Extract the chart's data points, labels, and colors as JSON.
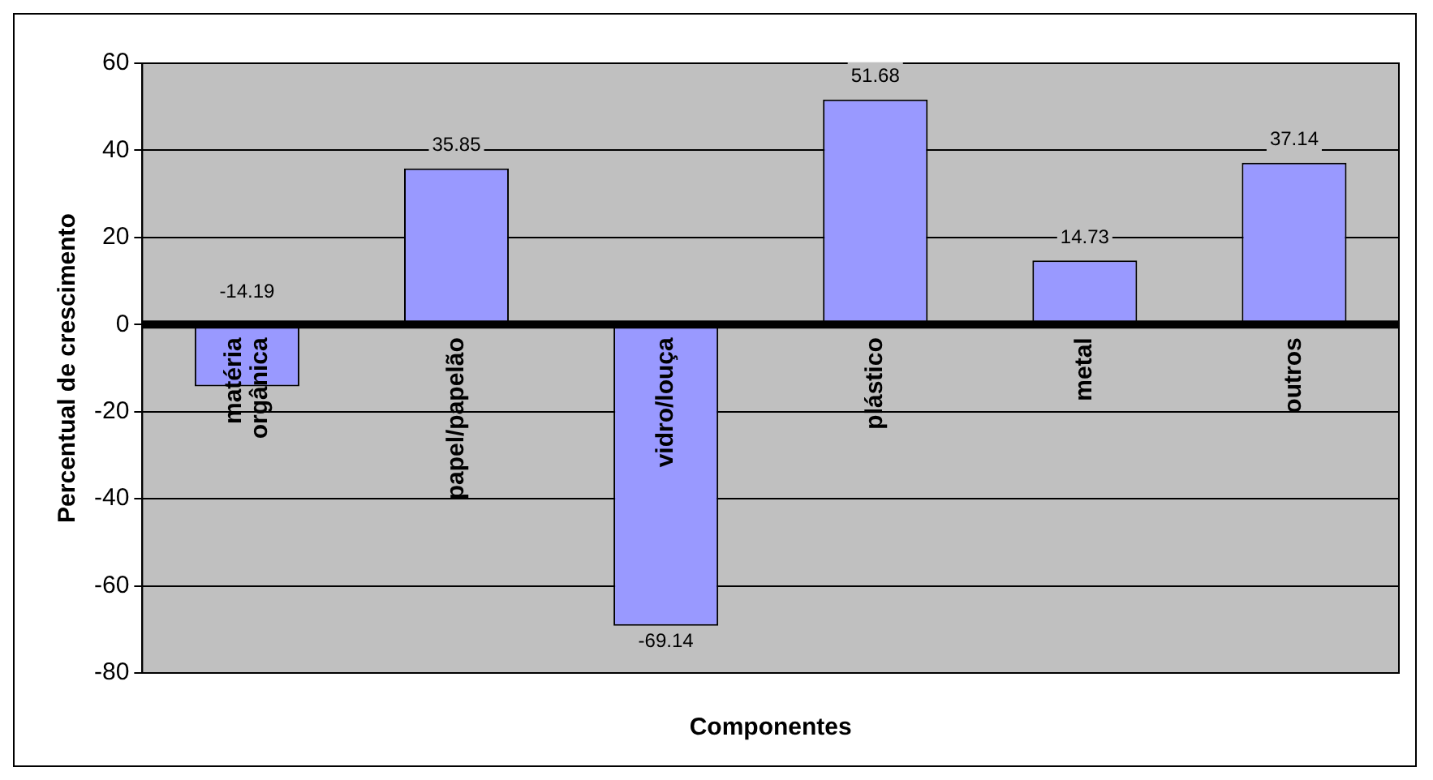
{
  "chart_data": {
    "type": "bar",
    "xlabel": "Componentes",
    "ylabel": "Percentual de crescimento",
    "categories": [
      "matéria orgânica",
      "papel/papelão",
      "vidro/louça",
      "plástico",
      "metal",
      "outros"
    ],
    "values": [
      -14.19,
      35.85,
      -69.14,
      51.68,
      14.73,
      37.14
    ],
    "color": "#9999ff",
    "ylim": [
      -80,
      60
    ],
    "yticks": [
      -80,
      -60,
      -40,
      -20,
      0,
      20,
      40,
      60
    ],
    "grid": "y",
    "data_labels": true,
    "legend": false
  }
}
